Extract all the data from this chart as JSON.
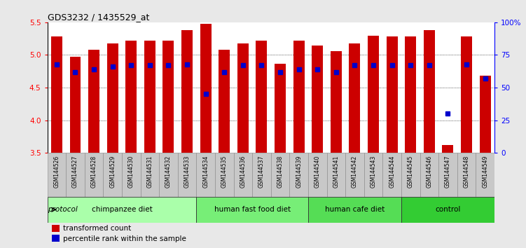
{
  "title": "GDS3232 / 1435529_at",
  "samples": [
    "GSM144526",
    "GSM144527",
    "GSM144528",
    "GSM144529",
    "GSM144530",
    "GSM144531",
    "GSM144532",
    "GSM144533",
    "GSM144534",
    "GSM144535",
    "GSM144536",
    "GSM144537",
    "GSM144538",
    "GSM144539",
    "GSM144540",
    "GSM144541",
    "GSM144542",
    "GSM144543",
    "GSM144544",
    "GSM144545",
    "GSM144546",
    "GSM144547",
    "GSM144548",
    "GSM144549"
  ],
  "bar_values": [
    5.28,
    4.97,
    5.08,
    5.18,
    5.22,
    5.22,
    5.22,
    5.38,
    5.48,
    5.08,
    5.18,
    5.22,
    4.87,
    5.22,
    5.15,
    5.06,
    5.18,
    5.3,
    5.28,
    5.28,
    5.38,
    3.62,
    5.28,
    4.68
  ],
  "percentile_values_pct": [
    68,
    62,
    64,
    66,
    67,
    67,
    67,
    68,
    45,
    62,
    67,
    67,
    62,
    64,
    64,
    62,
    67,
    67,
    67,
    67,
    67,
    30,
    68,
    57
  ],
  "groups": [
    {
      "label": "chimpanzee diet",
      "start": 0,
      "end": 8,
      "color": "#aaffaa"
    },
    {
      "label": "human fast food diet",
      "start": 8,
      "end": 14,
      "color": "#77ee77"
    },
    {
      "label": "human cafe diet",
      "start": 14,
      "end": 19,
      "color": "#55dd55"
    },
    {
      "label": "control",
      "start": 19,
      "end": 24,
      "color": "#33cc33"
    }
  ],
  "ylim_left": [
    3.5,
    5.5
  ],
  "ylim_right": [
    0,
    100
  ],
  "yticks_left": [
    3.5,
    4.0,
    4.5,
    5.0,
    5.5
  ],
  "yticks_right": [
    0,
    25,
    50,
    75,
    100
  ],
  "ytick_labels_right": [
    "0",
    "25",
    "50",
    "75",
    "100%"
  ],
  "bar_color": "#cc0000",
  "percentile_color": "#0000cc",
  "bg_color": "#e8e8e8",
  "plot_bg": "#ffffff",
  "bar_width": 0.6,
  "percentile_marker_size": 5
}
